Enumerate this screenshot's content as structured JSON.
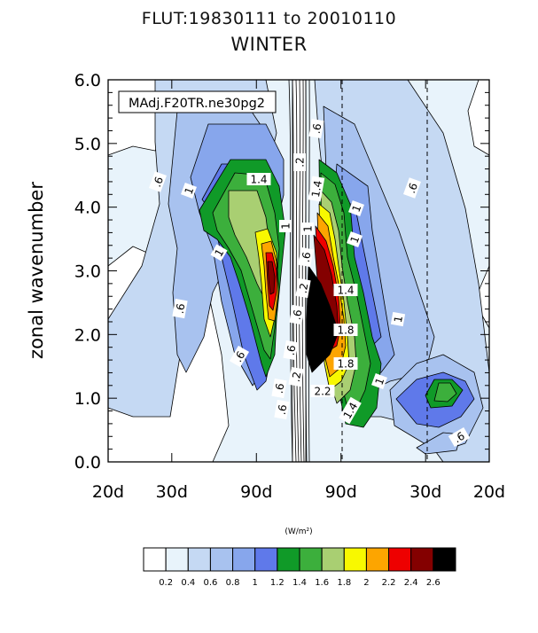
{
  "title_line1": "FLUT:19830111 to 20010110",
  "title_line2": "WINTER",
  "panel_label": "MAdj.F20TR.ne30pg2",
  "colorbar_units": "(W/m²)",
  "chart_data": {
    "type": "heatmap",
    "ylabel": "zonal wavenumber",
    "ylim": [
      0,
      6
    ],
    "y_ticks": [
      "0.0",
      "1.0",
      "2.0",
      "3.0",
      "4.0",
      "5.0",
      "6.0"
    ],
    "x_ticks": [
      "20d",
      "30d",
      "90d",
      "90d",
      "30d",
      "20d"
    ],
    "x_tick_values": [
      -0.05,
      -0.0333,
      -0.0111,
      0.0111,
      0.0333,
      0.05
    ],
    "xlim": [
      -0.05,
      0.05
    ],
    "levels": [
      0.2,
      0.4,
      0.6,
      0.8,
      1,
      1.2,
      1.4,
      1.6,
      1.8,
      2,
      2.2,
      2.4,
      2.6
    ],
    "level_labels": [
      "0.2",
      "0.4",
      "0.6",
      "0.8",
      "1",
      "1.2",
      "1.4",
      "1.6",
      "1.8",
      "2",
      "2.2",
      "2.4",
      "2.6"
    ],
    "colors": [
      "#ffffff",
      "#e8f3fb",
      "#c5d9f3",
      "#a8c2ef",
      "#87a6ec",
      "#5f79ea",
      "#109a28",
      "#3caf3c",
      "#a9cf72",
      "#f8f800",
      "#fda500",
      "#ee0000",
      "#840000",
      "#000000"
    ],
    "contour_labels": [
      ".6",
      "1",
      "1.4",
      "1",
      "1",
      ".6",
      ".2",
      ".6",
      "1.4",
      "1",
      ".6",
      "1",
      ".6",
      "1",
      ".2",
      ".6",
      "1.4",
      "1.8",
      ".6",
      "1.8",
      "2.2",
      "1.4",
      "1",
      ".6",
      ".6",
      ".2",
      ".6",
      "1",
      ".6"
    ],
    "grid": false
  }
}
